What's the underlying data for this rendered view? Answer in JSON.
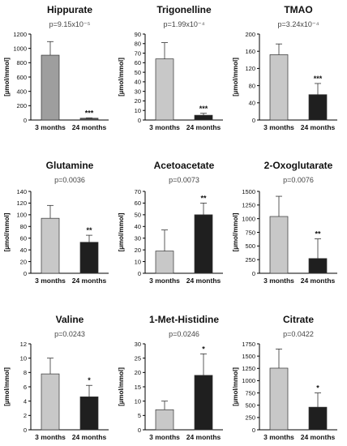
{
  "colors": {
    "light_bar": "#c8c8c8",
    "dark_bar": "#1f1f1f",
    "axis": "#000000",
    "pvalue_text": "#444444"
  },
  "chart_data": [
    {
      "type": "bar",
      "title": "Hippurate",
      "subtitle": "p=9.15x10⁻⁵",
      "ylabel": "[µmol/mmol]",
      "categories": [
        "3 months",
        "24 months"
      ],
      "values": [
        905,
        25
      ],
      "errors": [
        190,
        5
      ],
      "bar_colors": [
        "#9e9e9e",
        "#555555"
      ],
      "ylim": [
        0,
        1200
      ],
      "yticks": [
        0,
        200,
        400,
        600,
        800,
        1000,
        1200
      ],
      "significance": [
        "",
        "***"
      ]
    },
    {
      "type": "bar",
      "title": "Trigonelline",
      "subtitle": "p=1.99x10⁻⁴",
      "ylabel": "[µmol/mmol]",
      "categories": [
        "3 months",
        "24 months"
      ],
      "values": [
        64,
        5
      ],
      "errors": [
        17,
        2
      ],
      "bar_colors": [
        "#c8c8c8",
        "#1f1f1f"
      ],
      "ylim": [
        0,
        90
      ],
      "yticks": [
        0,
        10,
        20,
        30,
        40,
        50,
        60,
        70,
        80,
        90
      ],
      "significance": [
        "",
        "***"
      ]
    },
    {
      "type": "bar",
      "title": "TMAO",
      "subtitle": "p=3.24x10⁻⁴",
      "ylabel": "[µmol/mmol]",
      "categories": [
        "3 months",
        "24 months"
      ],
      "values": [
        152,
        59
      ],
      "errors": [
        25,
        26
      ],
      "bar_colors": [
        "#c8c8c8",
        "#1f1f1f"
      ],
      "ylim": [
        0,
        200
      ],
      "yticks": [
        0,
        40,
        80,
        120,
        160,
        200
      ],
      "significance": [
        "",
        "***"
      ]
    },
    {
      "type": "bar",
      "title": "Glutamine",
      "subtitle": "p=0.0036",
      "ylabel": "[µmol/mmol]",
      "categories": [
        "3 months",
        "24 months"
      ],
      "values": [
        94,
        53
      ],
      "errors": [
        22,
        12
      ],
      "bar_colors": [
        "#c8c8c8",
        "#1f1f1f"
      ],
      "ylim": [
        0,
        140
      ],
      "yticks": [
        0,
        20,
        40,
        60,
        80,
        100,
        120,
        140
      ],
      "significance": [
        "",
        "**"
      ]
    },
    {
      "type": "bar",
      "title": "Acetoacetate",
      "subtitle": "p=0.0073",
      "ylabel": "[µmol/mmol]",
      "categories": [
        "3 months",
        "24 months"
      ],
      "values": [
        19,
        50
      ],
      "errors": [
        18,
        10
      ],
      "bar_colors": [
        "#c8c8c8",
        "#1f1f1f"
      ],
      "ylim": [
        0,
        70
      ],
      "yticks": [
        0,
        10,
        20,
        30,
        40,
        50,
        60,
        70
      ],
      "significance": [
        "",
        "**"
      ]
    },
    {
      "type": "bar",
      "title": "2-Oxoglutarate",
      "subtitle": "p=0.0076",
      "ylabel": "[µmol/mmol]",
      "categories": [
        "3 months",
        "24 months"
      ],
      "values": [
        1040,
        270
      ],
      "errors": [
        370,
        360
      ],
      "bar_colors": [
        "#c8c8c8",
        "#1f1f1f"
      ],
      "ylim": [
        0,
        1500
      ],
      "yticks": [
        0,
        250,
        500,
        750,
        1000,
        1250,
        1500
      ],
      "significance": [
        "",
        "**"
      ]
    },
    {
      "type": "bar",
      "title": "Valine",
      "subtitle": "p=0.0243",
      "ylabel": "[µmol/mmol]",
      "categories": [
        "3 months",
        "24 months"
      ],
      "values": [
        7.8,
        4.6
      ],
      "errors": [
        2.2,
        1.6
      ],
      "bar_colors": [
        "#c8c8c8",
        "#1f1f1f"
      ],
      "ylim": [
        0,
        12
      ],
      "yticks": [
        0,
        2,
        4,
        6,
        8,
        10,
        12
      ],
      "significance": [
        "",
        "*"
      ]
    },
    {
      "type": "bar",
      "title": "1-Met-Histidine",
      "subtitle": "p=0.0246",
      "ylabel": "[µmol/mmol]",
      "categories": [
        "3 months",
        "24 months"
      ],
      "values": [
        7,
        19
      ],
      "errors": [
        3,
        7.5
      ],
      "bar_colors": [
        "#c8c8c8",
        "#1f1f1f"
      ],
      "ylim": [
        0,
        30
      ],
      "yticks": [
        0,
        5,
        10,
        15,
        20,
        25,
        30
      ],
      "significance": [
        "",
        "*"
      ]
    },
    {
      "type": "bar",
      "title": "Citrate",
      "subtitle": "p=0.0422",
      "ylabel": "[µmol/mmol]",
      "categories": [
        "3 months",
        "24 months"
      ],
      "values": [
        1255,
        460
      ],
      "errors": [
        390,
        290
      ],
      "bar_colors": [
        "#c8c8c8",
        "#1f1f1f"
      ],
      "ylim": [
        0,
        1750
      ],
      "yticks": [
        0,
        250,
        500,
        750,
        1000,
        1250,
        1500,
        1750
      ],
      "significance": [
        "",
        "*"
      ]
    }
  ]
}
